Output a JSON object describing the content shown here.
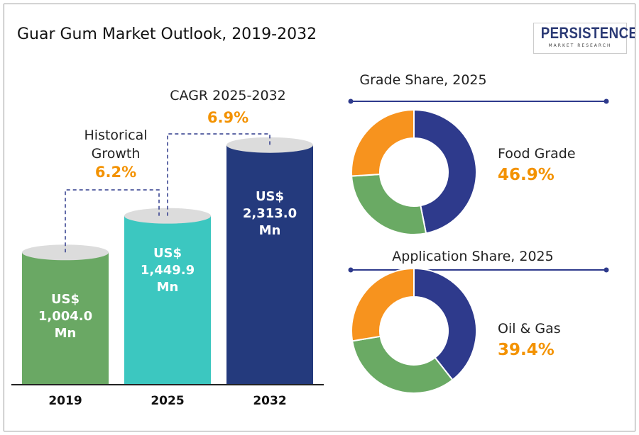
{
  "title": "Guar Gum Market Outlook, 2019-2032",
  "logo": {
    "word": "PERSISTENCE",
    "sub": "MARKET RESEARCH"
  },
  "colors": {
    "bar_2019": "#6aa864",
    "bar_2025": "#3cc7c0",
    "bar_2032": "#243a7d",
    "accent": "#f39200",
    "navy": "#2e3a8c",
    "green": "#6aaa64",
    "orange": "#f7931e"
  },
  "chart_data": [
    {
      "type": "bar",
      "categories": [
        "2019",
        "2025",
        "2032"
      ],
      "values": [
        1004.0,
        1449.9,
        2313.0
      ],
      "value_labels": [
        [
          "US$",
          "1,004.0",
          "Mn"
        ],
        [
          "US$",
          "1,449.9",
          "Mn"
        ],
        [
          "US$",
          "2,313.0",
          "Mn"
        ]
      ],
      "annotations": {
        "historical": {
          "label_line1": "Historical",
          "label_line2": "Growth",
          "value": "6.2%"
        },
        "cagr": {
          "label": "CAGR 2025-2032",
          "value": "6.9%"
        }
      }
    },
    {
      "type": "pie",
      "title": "Grade Share, 2025",
      "highlight_label": "Food Grade",
      "highlight_value": "46.9%",
      "values": [
        46.9,
        27.1,
        26.0
      ]
    },
    {
      "type": "pie",
      "title": "Application Share, 2025",
      "highlight_label": "Oil & Gas",
      "highlight_value": "39.4%",
      "values": [
        39.4,
        33.0,
        27.6
      ]
    }
  ]
}
